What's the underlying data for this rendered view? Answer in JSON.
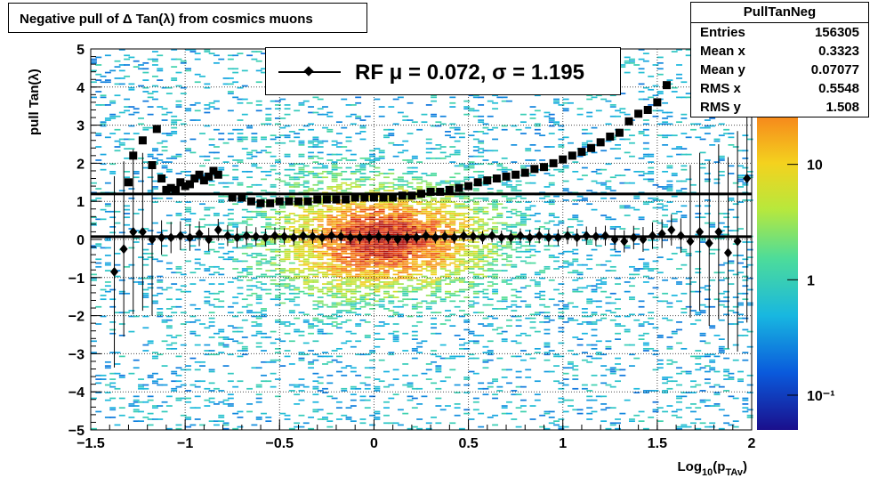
{
  "title": "Negative pull of Δ Tan(λ) from cosmics muons",
  "stats": {
    "name": "PullTanNeg",
    "rows": [
      {
        "label": "Entries",
        "value": "156305"
      },
      {
        "label": "Mean x",
        "value": "0.3323"
      },
      {
        "label": "Mean y",
        "value": "0.07077"
      },
      {
        "label": "RMS x",
        "value": "0.5548"
      },
      {
        "label": "RMS y",
        "value": "1.508"
      }
    ]
  },
  "legend": {
    "text": "RF μ =  0.072, σ =   1.195"
  },
  "chart_data": {
    "type": "heatmap",
    "xlabel": "Log10(pTAv)",
    "ylabel": "pull Tan(λ)",
    "xlim": [
      -1.5,
      2
    ],
    "ylim": [
      -5,
      5
    ],
    "xticks": [
      -1.5,
      -1,
      -0.5,
      0,
      0.5,
      1,
      1.5,
      2
    ],
    "yticks": [
      -5,
      -4,
      -3,
      -2,
      -1,
      0,
      1,
      2,
      3,
      4,
      5
    ],
    "xtick_labels": [
      "−1.5",
      "−1",
      "−0.5",
      "0",
      "0.5",
      "1",
      "1.5",
      "2"
    ],
    "ytick_labels": [
      "−5",
      "−4",
      "−3",
      "−2",
      "−1",
      "0",
      "1",
      "2",
      "3",
      "4",
      "5"
    ],
    "grid": true,
    "colorbar": {
      "scale": "log",
      "ticks": [
        0.1,
        1,
        10
      ],
      "tick_labels": [
        "10⁻¹",
        "1",
        "10"
      ],
      "range": [
        0.05,
        100
      ]
    },
    "hlines": [
      {
        "y": 1.195
      },
      {
        "y": 0.072
      }
    ],
    "series": [
      {
        "name": "sigma",
        "marker": "square",
        "x": [
          -1.3,
          -1.275,
          -1.225,
          -1.175,
          -1.15,
          -1.125,
          -1.1,
          -1.075,
          -1.05,
          -1.025,
          -1.0,
          -0.975,
          -0.95,
          -0.925,
          -0.9,
          -0.875,
          -0.85,
          -0.825,
          -0.75,
          -0.7,
          -0.65,
          -0.6,
          -0.55,
          -0.5,
          -0.45,
          -0.4,
          -0.35,
          -0.3,
          -0.25,
          -0.2,
          -0.15,
          -0.1,
          -0.05,
          0.0,
          0.05,
          0.1,
          0.15,
          0.2,
          0.25,
          0.3,
          0.35,
          0.4,
          0.45,
          0.5,
          0.55,
          0.6,
          0.65,
          0.7,
          0.75,
          0.8,
          0.85,
          0.9,
          0.95,
          1.0,
          1.05,
          1.1,
          1.15,
          1.2,
          1.25,
          1.3,
          1.35,
          1.4,
          1.45,
          1.5,
          1.55
        ],
        "y": [
          1.5,
          2.2,
          2.6,
          1.95,
          2.9,
          1.6,
          1.3,
          1.35,
          1.3,
          1.5,
          1.4,
          1.45,
          1.6,
          1.7,
          1.55,
          1.65,
          1.8,
          1.7,
          1.1,
          1.1,
          1.0,
          0.95,
          0.95,
          1.0,
          1.0,
          1.0,
          1.0,
          1.05,
          1.05,
          1.05,
          1.05,
          1.1,
          1.1,
          1.1,
          1.1,
          1.1,
          1.15,
          1.15,
          1.2,
          1.25,
          1.25,
          1.3,
          1.35,
          1.4,
          1.5,
          1.55,
          1.6,
          1.65,
          1.7,
          1.75,
          1.85,
          1.9,
          2.0,
          2.1,
          2.2,
          2.3,
          2.4,
          2.55,
          2.7,
          2.8,
          3.1,
          3.3,
          3.4,
          3.6,
          4.05
        ]
      },
      {
        "name": "mu",
        "marker": "diamond",
        "x": [
          -1.375,
          -1.325,
          -1.275,
          -1.225,
          -1.175,
          -1.125,
          -1.075,
          -1.025,
          -0.975,
          -0.925,
          -0.875,
          -0.825,
          -0.775,
          -0.725,
          -0.675,
          -0.625,
          -0.575,
          -0.525,
          -0.475,
          -0.425,
          -0.375,
          -0.325,
          -0.275,
          -0.225,
          -0.175,
          -0.125,
          -0.075,
          -0.025,
          0.025,
          0.075,
          0.125,
          0.175,
          0.225,
          0.275,
          0.325,
          0.375,
          0.425,
          0.475,
          0.525,
          0.575,
          0.625,
          0.675,
          0.725,
          0.775,
          0.825,
          0.875,
          0.925,
          0.975,
          1.025,
          1.075,
          1.125,
          1.175,
          1.225,
          1.275,
          1.325,
          1.375,
          1.425,
          1.475,
          1.525,
          1.575,
          1.625,
          1.675,
          1.725,
          1.775,
          1.825,
          1.875,
          1.925,
          1.975
        ],
        "y": [
          -0.85,
          -0.25,
          0.2,
          0.2,
          0.0,
          0.05,
          0.05,
          0.1,
          0.05,
          0.15,
          0.0,
          0.25,
          0.1,
          0.05,
          0.1,
          0.08,
          0.05,
          0.1,
          0.08,
          0.05,
          0.1,
          0.08,
          0.05,
          0.1,
          0.08,
          0.05,
          0.05,
          0.05,
          0.08,
          0.05,
          0.0,
          0.05,
          0.05,
          0.1,
          0.05,
          0.08,
          0.05,
          0.1,
          0.08,
          0.05,
          0.1,
          0.05,
          0.05,
          0.1,
          0.05,
          0.1,
          0.05,
          0.05,
          0.1,
          0.05,
          0.1,
          0.08,
          0.1,
          0.0,
          -0.05,
          0.05,
          0.0,
          0.1,
          0.15,
          0.25,
          0.1,
          -0.05,
          0.2,
          -0.1,
          0.2,
          -0.35,
          -0.05,
          1.6
        ]
      }
    ]
  }
}
